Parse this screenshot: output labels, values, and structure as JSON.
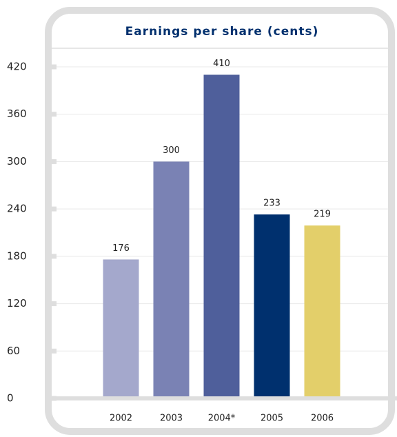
{
  "chart_data": {
    "type": "bar",
    "title": "Earnings per share (cents)",
    "categories": [
      "2002",
      "2003",
      "2004*",
      "2005",
      "2006"
    ],
    "values": [
      176,
      300,
      410,
      233,
      219
    ],
    "colors": [
      "#a4a8cc",
      "#7a82b4",
      "#4f5f9b",
      "#00306e",
      "#e3cf6a"
    ],
    "ylim": [
      0,
      420
    ],
    "yticks": [
      0,
      60,
      120,
      180,
      240,
      300,
      360,
      420
    ],
    "grid": true
  }
}
